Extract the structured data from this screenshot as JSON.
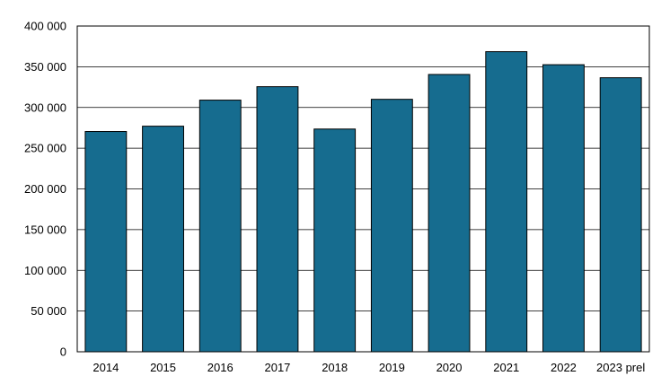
{
  "chart_data": {
    "type": "bar",
    "title": "",
    "xlabel": "",
    "ylabel": "",
    "categories": [
      "2014",
      "2015",
      "2016",
      "2017",
      "2018",
      "2019",
      "2020",
      "2021",
      "2022",
      "2023 prel"
    ],
    "values": [
      270500,
      277000,
      309000,
      325500,
      273500,
      310000,
      340500,
      368500,
      352500,
      336500
    ],
    "ylim": [
      0,
      400000
    ],
    "yticks": [
      0,
      50000,
      100000,
      150000,
      200000,
      250000,
      300000,
      350000,
      400000
    ],
    "ytick_labels": [
      "0",
      "50 000",
      "100 000",
      "150 000",
      "200 000",
      "250 000",
      "300 000",
      "350 000",
      "400 000"
    ],
    "grid": true,
    "legend": "none",
    "bar_color": "#166c8f"
  }
}
